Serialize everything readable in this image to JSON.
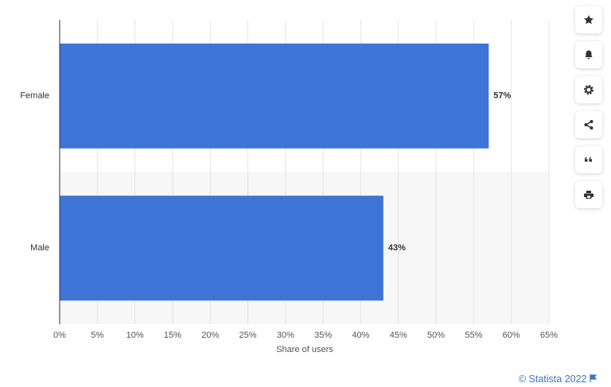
{
  "chart_data": {
    "type": "bar",
    "orientation": "horizontal",
    "categories": [
      "Female",
      "Male"
    ],
    "values": [
      57,
      43
    ],
    "value_labels": [
      "57%",
      "43%"
    ],
    "color": "#3e74d6",
    "xlabel": "Share of users",
    "xlim": [
      0,
      65
    ],
    "xticks": [
      {
        "value": 0,
        "label": "0%"
      },
      {
        "value": 5,
        "label": "5%"
      },
      {
        "value": 10,
        "label": "10%"
      },
      {
        "value": 15,
        "label": "15%"
      },
      {
        "value": 20,
        "label": "20%"
      },
      {
        "value": 25,
        "label": "25%"
      },
      {
        "value": 30,
        "label": "30%"
      },
      {
        "value": 35,
        "label": "35%"
      },
      {
        "value": 40,
        "label": "40%"
      },
      {
        "value": 45,
        "label": "45%"
      },
      {
        "value": 50,
        "label": "50%"
      },
      {
        "value": 55,
        "label": "55%"
      },
      {
        "value": 60,
        "label": "60%"
      },
      {
        "value": 65,
        "label": "65%"
      }
    ],
    "grid": true
  },
  "credit": "© Statista 2022"
}
